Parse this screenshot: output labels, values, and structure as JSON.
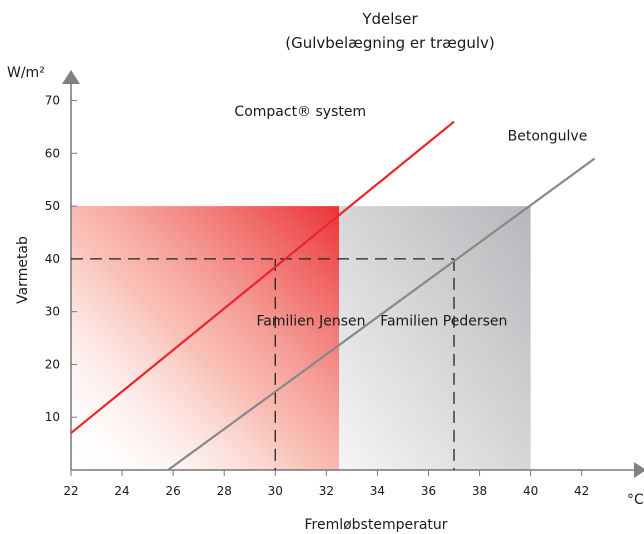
{
  "chart_data": {
    "type": "line",
    "title": [
      "Ydelser",
      "(Gulvbelægning er trægulv)"
    ],
    "xlabel": "Fremløbstemperatur",
    "x_unit": "°C",
    "ylabel": "Varmetab",
    "y_unit": "W/m²",
    "xlim": [
      22,
      43.5
    ],
    "ylim": [
      0,
      72
    ],
    "x_ticks": [
      22,
      24,
      26,
      28,
      30,
      32,
      34,
      36,
      38,
      40,
      42
    ],
    "y_ticks": [
      10,
      20,
      30,
      40,
      50,
      60,
      70
    ],
    "series": [
      {
        "name": "Compact® system",
        "color": "#e8262b",
        "points": [
          [
            22,
            7
          ],
          [
            37,
            66
          ]
        ]
      },
      {
        "name": "Betongulve",
        "color": "#888888",
        "points": [
          [
            25.8,
            0
          ],
          [
            42.5,
            59
          ]
        ]
      }
    ],
    "regions": [
      {
        "label": "Familien Jensen",
        "x": [
          22,
          32.5
        ],
        "y": [
          0,
          50
        ],
        "color": "#ee3b3b"
      },
      {
        "label": "Familien Pedersen",
        "x": [
          32.5,
          40
        ],
        "y": [
          0,
          50
        ],
        "color": "#b9babd"
      }
    ],
    "reference_line": {
      "y": 40,
      "x_from": 22,
      "x_to": 37
    },
    "markers": [
      {
        "x": 30,
        "y": 40
      },
      {
        "x": 37,
        "y": 40
      }
    ]
  }
}
